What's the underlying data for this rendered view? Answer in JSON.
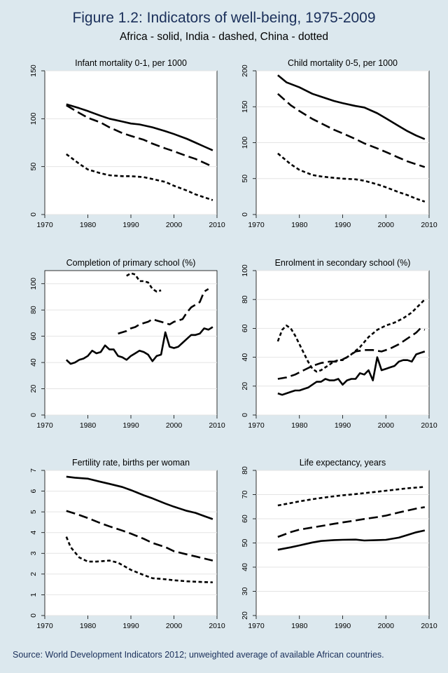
{
  "title": "Figure 1.2: Indicators of well-being, 1975-2009",
  "subtitle": "Africa - solid, India - dashed, China - dotted",
  "source": "Source: World Development Indicators 2012; unweighted average of available African countries.",
  "colors": {
    "background": "#dce8ee",
    "plot": "#ffffff",
    "title": "#1a2f5a",
    "line": "#000000"
  },
  "chart_data": [
    {
      "type": "line",
      "title": "Infant mortality 0-1, per 1000",
      "xlim": [
        1970,
        2010
      ],
      "xticks": [
        1970,
        1980,
        1990,
        2000,
        2010
      ],
      "ylim": [
        0,
        150
      ],
      "yticks": [
        0,
        50,
        100,
        150
      ],
      "grid": true,
      "series": [
        {
          "name": "Africa",
          "style": "solid",
          "x": [
            1975,
            1978,
            1980,
            1983,
            1985,
            1988,
            1990,
            1992,
            1995,
            1998,
            2000,
            2003,
            2005,
            2007,
            2009
          ],
          "y": [
            115,
            111,
            108,
            103,
            100,
            97,
            95,
            94,
            91,
            87,
            84,
            79,
            75,
            71,
            67
          ]
        },
        {
          "name": "India",
          "style": "dashed",
          "x": [
            1975,
            1978,
            1980,
            1983,
            1985,
            1988,
            1990,
            1993,
            1995,
            1998,
            2000,
            2003,
            2005,
            2007,
            2009
          ],
          "y": [
            114,
            106,
            101,
            96,
            91,
            85,
            82,
            78,
            74,
            69,
            66,
            61,
            58,
            54,
            50
          ]
        },
        {
          "name": "China",
          "style": "dotted",
          "x": [
            1975,
            1978,
            1980,
            1983,
            1985,
            1988,
            1990,
            1993,
            1995,
            1998,
            2000,
            2003,
            2005,
            2007,
            2009
          ],
          "y": [
            63,
            53,
            47,
            43,
            41,
            40,
            40,
            39,
            37,
            34,
            30,
            25,
            21,
            18,
            15
          ]
        }
      ]
    },
    {
      "type": "line",
      "title": "Child mortality 0-5, per 1000",
      "xlim": [
        1970,
        2010
      ],
      "xticks": [
        1970,
        1980,
        1990,
        2000,
        2010
      ],
      "ylim": [
        0,
        200
      ],
      "yticks": [
        0,
        50,
        100,
        150,
        200
      ],
      "grid": true,
      "series": [
        {
          "name": "Africa",
          "style": "solid",
          "x": [
            1975,
            1977,
            1980,
            1983,
            1985,
            1988,
            1990,
            1993,
            1995,
            1998,
            2000,
            2003,
            2005,
            2007,
            2009
          ],
          "y": [
            194,
            184,
            177,
            168,
            164,
            158,
            155,
            151,
            149,
            141,
            134,
            123,
            116,
            110,
            105
          ]
        },
        {
          "name": "India",
          "style": "dashed",
          "x": [
            1975,
            1978,
            1980,
            1983,
            1985,
            1988,
            1990,
            1993,
            1995,
            1998,
            2000,
            2003,
            2005,
            2007,
            2009
          ],
          "y": [
            168,
            152,
            144,
            133,
            127,
            118,
            113,
            105,
            99,
            92,
            87,
            79,
            74,
            70,
            66
          ]
        },
        {
          "name": "China",
          "style": "dotted",
          "x": [
            1975,
            1978,
            1980,
            1983,
            1985,
            1988,
            1990,
            1993,
            1995,
            1998,
            2000,
            2003,
            2005,
            2007,
            2009
          ],
          "y": [
            85,
            70,
            62,
            55,
            53,
            51,
            50,
            49,
            47,
            42,
            38,
            31,
            27,
            22,
            18
          ]
        }
      ]
    },
    {
      "type": "line",
      "title": "Completion of primary school (%)",
      "xlim": [
        1970,
        2010
      ],
      "xticks": [
        1970,
        1980,
        1990,
        2000,
        2010
      ],
      "ylim": [
        0,
        110
      ],
      "yticks": [
        0,
        20,
        40,
        60,
        80,
        100
      ],
      "grid": true,
      "series": [
        {
          "name": "Africa",
          "style": "solid",
          "x": [
            1975,
            1976,
            1977,
            1978,
            1979,
            1980,
            1981,
            1982,
            1983,
            1984,
            1985,
            1986,
            1987,
            1988,
            1989,
            1990,
            1991,
            1992,
            1993,
            1994,
            1995,
            1996,
            1997,
            1998,
            1999,
            2000,
            2001,
            2002,
            2003,
            2004,
            2005,
            2006,
            2007,
            2008,
            2009
          ],
          "y": [
            42,
            39,
            40,
            42,
            43,
            45,
            49,
            47,
            48,
            53,
            50,
            50,
            45,
            44,
            42,
            45,
            47,
            49,
            48,
            46,
            41,
            45,
            46,
            63,
            52,
            51,
            52,
            55,
            58,
            61,
            61,
            62,
            66,
            65,
            67
          ]
        },
        {
          "name": "India",
          "style": "dashed",
          "x": [
            1987,
            1988,
            1989,
            1990,
            1991,
            1992,
            1993,
            1994,
            1995,
            1996,
            1997,
            1998,
            1999,
            2000,
            2001,
            2002,
            2003,
            2004,
            2005,
            2006,
            2007,
            2008
          ],
          "y": [
            62,
            63,
            64,
            66,
            67,
            69,
            70,
            71,
            73,
            72,
            71,
            70,
            69,
            71,
            72,
            73,
            78,
            82,
            84,
            86,
            94,
            96
          ]
        },
        {
          "name": "China",
          "style": "dotted",
          "x": [
            1989,
            1990,
            1991,
            1992,
            1993,
            1994,
            1995,
            1996,
            1997
          ],
          "y": [
            106,
            108,
            107,
            102,
            102,
            101,
            96,
            94,
            95
          ]
        }
      ]
    },
    {
      "type": "line",
      "title": "Enrolment in secondary school (%)",
      "xlim": [
        1970,
        2010
      ],
      "xticks": [
        1970,
        1980,
        1990,
        2000,
        2010
      ],
      "ylim": [
        0,
        100
      ],
      "yticks": [
        0,
        20,
        40,
        60,
        80,
        100
      ],
      "grid": true,
      "series": [
        {
          "name": "Africa",
          "style": "solid",
          "x": [
            1975,
            1976,
            1977,
            1978,
            1979,
            1980,
            1981,
            1982,
            1983,
            1984,
            1985,
            1986,
            1987,
            1988,
            1989,
            1990,
            1991,
            1992,
            1993,
            1994,
            1995,
            1996,
            1997,
            1998,
            1999,
            2000,
            2001,
            2002,
            2003,
            2004,
            2005,
            2006,
            2007,
            2008,
            2009
          ],
          "y": [
            15,
            14,
            15,
            16,
            17,
            17,
            18,
            19,
            21,
            23,
            23,
            25,
            24,
            24,
            25,
            21,
            24,
            25,
            25,
            29,
            28,
            31,
            24,
            40,
            31,
            32,
            33,
            34,
            37,
            38,
            38,
            37,
            42,
            43,
            44
          ]
        },
        {
          "name": "India",
          "style": "dashed",
          "x": [
            1975,
            1977,
            1979,
            1981,
            1983,
            1985,
            1987,
            1989,
            1991,
            1993,
            1995,
            1997,
            1999,
            2001,
            2003,
            2005,
            2007,
            2008,
            2009
          ],
          "y": [
            25,
            26,
            28,
            31,
            34,
            36,
            37,
            37,
            40,
            44,
            45,
            45,
            44,
            46,
            49,
            53,
            57,
            60,
            59
          ]
        },
        {
          "name": "China",
          "style": "dotted",
          "x": [
            1975,
            1976,
            1977,
            1978,
            1979,
            1980,
            1981,
            1982,
            1983,
            1984,
            1985,
            1986,
            1987,
            1988,
            1989,
            1990,
            1992,
            1994,
            1996,
            1998,
            2000,
            2002,
            2004,
            2006,
            2008,
            2009
          ],
          "y": [
            51,
            59,
            62,
            60,
            55,
            49,
            43,
            37,
            32,
            30,
            31,
            33,
            35,
            37,
            38,
            38,
            42,
            47,
            54,
            59,
            62,
            64,
            67,
            71,
            77,
            80
          ]
        }
      ]
    },
    {
      "type": "line",
      "title": "Fertility rate, births per woman",
      "xlim": [
        1970,
        2010
      ],
      "xticks": [
        1970,
        1980,
        1990,
        2000,
        2010
      ],
      "ylim": [
        0,
        7
      ],
      "yticks": [
        0,
        1,
        2,
        3,
        4,
        5,
        6,
        7
      ],
      "grid": true,
      "series": [
        {
          "name": "Africa",
          "style": "solid",
          "x": [
            1975,
            1977,
            1980,
            1983,
            1985,
            1988,
            1990,
            1993,
            1995,
            1998,
            2000,
            2003,
            2005,
            2007,
            2009
          ],
          "y": [
            6.7,
            6.65,
            6.6,
            6.45,
            6.35,
            6.2,
            6.05,
            5.8,
            5.65,
            5.4,
            5.25,
            5.05,
            4.95,
            4.8,
            4.65
          ]
        },
        {
          "name": "India",
          "style": "dashed",
          "x": [
            1975,
            1978,
            1980,
            1983,
            1985,
            1988,
            1990,
            1993,
            1995,
            1998,
            2000,
            2003,
            2005,
            2007,
            2009
          ],
          "y": [
            5.05,
            4.85,
            4.7,
            4.45,
            4.3,
            4.1,
            3.95,
            3.7,
            3.5,
            3.3,
            3.1,
            2.95,
            2.85,
            2.75,
            2.65
          ]
        },
        {
          "name": "China",
          "style": "dotted",
          "x": [
            1975,
            1976,
            1978,
            1980,
            1982,
            1985,
            1987,
            1990,
            1993,
            1995,
            1998,
            2000,
            2003,
            2005,
            2009
          ],
          "y": [
            3.8,
            3.3,
            2.8,
            2.6,
            2.6,
            2.65,
            2.55,
            2.2,
            1.95,
            1.8,
            1.75,
            1.7,
            1.65,
            1.63,
            1.6
          ]
        }
      ]
    },
    {
      "type": "line",
      "title": "Life expectancy, years",
      "xlim": [
        1970,
        2010
      ],
      "xticks": [
        1970,
        1980,
        1990,
        2000,
        2010
      ],
      "ylim": [
        20,
        80
      ],
      "yticks": [
        20,
        30,
        40,
        50,
        60,
        70,
        80
      ],
      "grid": true,
      "series": [
        {
          "name": "Africa",
          "style": "solid",
          "x": [
            1975,
            1978,
            1980,
            1983,
            1985,
            1988,
            1990,
            1993,
            1995,
            1998,
            2000,
            2003,
            2005,
            2007,
            2009
          ],
          "y": [
            47.2,
            48.2,
            49,
            50.2,
            50.8,
            51.2,
            51.3,
            51.4,
            51,
            51.2,
            51.3,
            52.2,
            53.3,
            54.4,
            55.2
          ]
        },
        {
          "name": "India",
          "style": "dashed",
          "x": [
            1975,
            1978,
            1980,
            1983,
            1985,
            1988,
            1990,
            1993,
            1995,
            1998,
            2000,
            2003,
            2005,
            2007,
            2009
          ],
          "y": [
            52.5,
            54.5,
            55.5,
            56.4,
            57,
            57.9,
            58.5,
            59.3,
            59.9,
            60.7,
            61.3,
            62.6,
            63.4,
            64.2,
            64.8
          ]
        },
        {
          "name": "China",
          "style": "dotted",
          "x": [
            1975,
            1978,
            1980,
            1983,
            1985,
            1988,
            1990,
            1993,
            1995,
            1998,
            2000,
            2003,
            2005,
            2007,
            2009
          ],
          "y": [
            65.5,
            66.5,
            67.2,
            68.1,
            68.6,
            69.3,
            69.7,
            70.2,
            70.6,
            71.2,
            71.6,
            72.2,
            72.6,
            72.9,
            73.2
          ]
        }
      ]
    }
  ]
}
